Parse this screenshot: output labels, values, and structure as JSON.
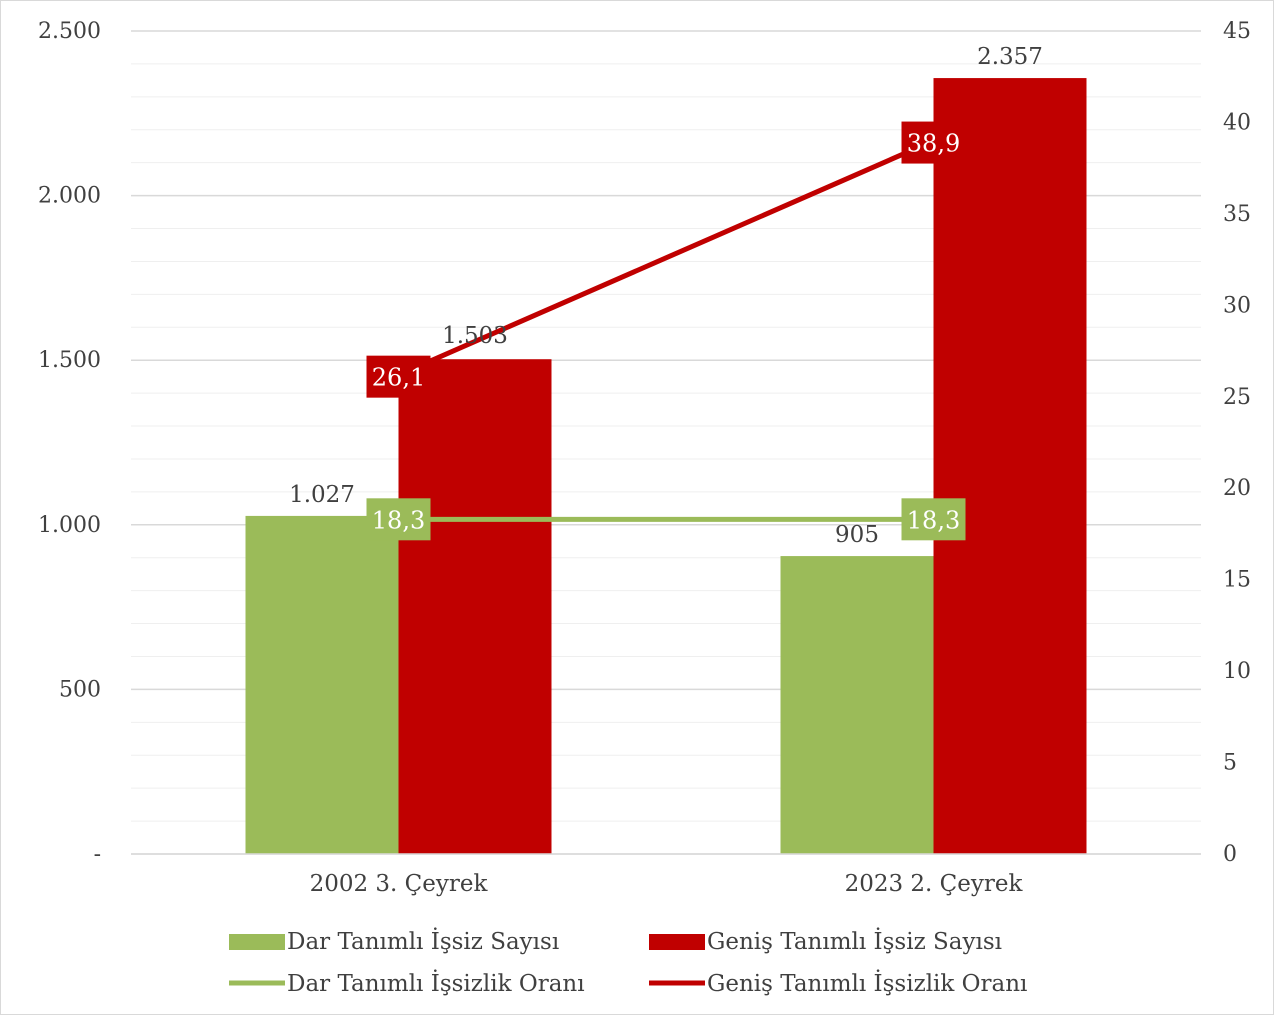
{
  "chart_data": {
    "type": "bar",
    "categories": [
      "2002 3. Çeyrek",
      "2023 2. Çeyrek"
    ],
    "series": [
      {
        "name": "Dar Tanımlı İşsiz Sayısı",
        "kind": "bar",
        "axis": "left",
        "color": "#9bbb59",
        "values": [
          1027,
          905
        ],
        "labels": [
          "1.027",
          "905"
        ]
      },
      {
        "name": "Geniş Tanımlı İşsiz Sayısı",
        "kind": "bar",
        "axis": "left",
        "color": "#c00000",
        "values": [
          1503,
          2357
        ],
        "labels": [
          "1.503",
          "2.357"
        ]
      },
      {
        "name": "Dar Tanımlı İşsizlik Oranı",
        "kind": "line",
        "axis": "right",
        "color": "#9bbb59",
        "values": [
          18.3,
          18.3
        ],
        "labels": [
          "18,3",
          "18,3"
        ]
      },
      {
        "name": "Geniş Tanımlı İşsizlik Oranı",
        "kind": "line",
        "axis": "right",
        "color": "#c00000",
        "values": [
          26.1,
          38.9
        ],
        "labels": [
          "26,1",
          "38,9"
        ]
      }
    ],
    "y_left": {
      "range": [
        0,
        2500
      ],
      "ticks": [
        0,
        500,
        1000,
        1500,
        2000,
        2500
      ],
      "tick_labels": [
        "-",
        "500",
        "1.000",
        "1.500",
        "2.000",
        "2.500"
      ]
    },
    "y_right": {
      "range": [
        0,
        45
      ],
      "ticks": [
        0,
        5,
        10,
        15,
        20,
        25,
        30,
        35,
        40,
        45
      ],
      "tick_labels": [
        "0",
        "5",
        "10",
        "15",
        "20",
        "25",
        "30",
        "35",
        "40",
        "45"
      ]
    },
    "grid": true,
    "legend_position": "bottom"
  }
}
